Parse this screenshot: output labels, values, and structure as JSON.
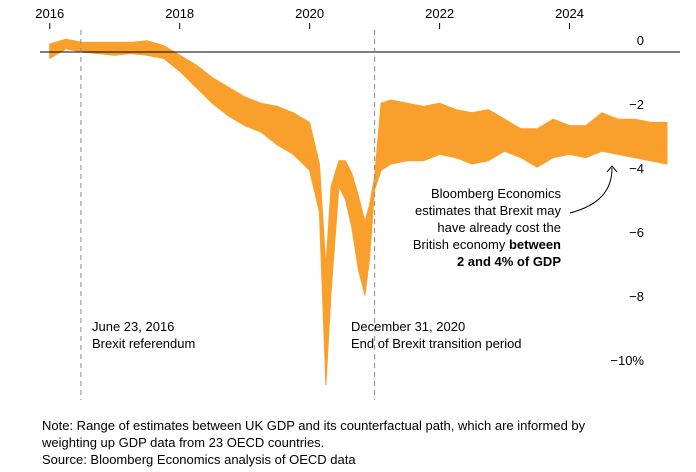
{
  "chart_data": {
    "type": "area",
    "title": "",
    "xlabel": "",
    "ylabel": "",
    "x_ticks": [
      "2016",
      "2018",
      "2020",
      "2022",
      "2024"
    ],
    "y_ticks": [
      "0",
      "−2",
      "−4",
      "−6",
      "−8",
      "−10%"
    ],
    "ylim": [
      -10.5,
      0.6
    ],
    "xlim": [
      2015.85,
      2025.7
    ],
    "grid": false,
    "colors": {
      "band": "#f9a02c",
      "zero_line": "#000000",
      "ref_line": "#888888"
    },
    "series": [
      {
        "type": "range",
        "x": [
          2016.0,
          2016.25,
          2016.5,
          2016.75,
          2017.0,
          2017.25,
          2017.5,
          2017.75,
          2018.0,
          2018.25,
          2018.5,
          2018.75,
          2019.0,
          2019.25,
          2019.5,
          2019.75,
          2020.0,
          2020.15,
          2020.25,
          2020.33,
          2020.45,
          2020.55,
          2020.65,
          2020.75,
          2020.85,
          2020.92,
          2021.0,
          2021.1,
          2021.25,
          2021.5,
          2021.75,
          2022.0,
          2022.25,
          2022.5,
          2022.75,
          2023.0,
          2023.25,
          2023.5,
          2023.75,
          2024.0,
          2024.25,
          2024.5,
          2024.75,
          2025.0,
          2025.25,
          2025.5
        ],
        "low": [
          -0.2,
          0.1,
          0.0,
          -0.05,
          -0.1,
          -0.05,
          -0.1,
          -0.2,
          -0.6,
          -1.1,
          -1.6,
          -2.0,
          -2.3,
          -2.5,
          -2.9,
          -3.2,
          -3.7,
          -5.0,
          -10.4,
          -7.5,
          -4.2,
          -4.6,
          -5.5,
          -6.8,
          -7.6,
          -6.5,
          -4.3,
          -3.7,
          -3.5,
          -3.4,
          -3.4,
          -3.2,
          -3.3,
          -3.5,
          -3.4,
          -3.1,
          -3.3,
          -3.6,
          -3.3,
          -3.2,
          -3.3,
          -3.1,
          -3.2,
          -3.3,
          -3.4,
          -3.5
        ],
        "high": [
          0.25,
          0.4,
          0.3,
          0.3,
          0.3,
          0.3,
          0.35,
          0.2,
          -0.1,
          -0.4,
          -0.8,
          -1.1,
          -1.4,
          -1.6,
          -1.7,
          -1.9,
          -2.2,
          -3.5,
          -6.7,
          -4.2,
          -3.4,
          -3.4,
          -3.8,
          -4.5,
          -5.3,
          -4.8,
          -3.9,
          -1.6,
          -1.5,
          -1.6,
          -1.7,
          -1.6,
          -1.8,
          -1.9,
          -1.8,
          -2.1,
          -2.4,
          -2.4,
          -2.1,
          -2.3,
          -2.3,
          -1.9,
          -2.1,
          -2.1,
          -2.2,
          -2.2
        ]
      }
    ],
    "reference_lines": [
      {
        "x": 2016.48,
        "label_line1": "June 23, 2016",
        "label_line2": "Brexit referendum"
      },
      {
        "x": 2021.0,
        "label_line1": "December 31, 2020",
        "label_line2": "End of Brexit transition period"
      }
    ],
    "callout": {
      "line1": "Bloomberg Economics",
      "line2": "estimates that Brexit may",
      "line3": "have already cost the",
      "line4_regular": "British economy ",
      "line4_bold": "between",
      "line5_bold": "2 and 4% of GDP"
    }
  },
  "footnote": {
    "line1": "Note: Range of estimates between UK GDP and its counterfactual path, which are informed by",
    "line2": "weighting up GDP data from 23 OECD countries.",
    "line3": "Source: Bloomberg Economics analysis of OECD data"
  }
}
